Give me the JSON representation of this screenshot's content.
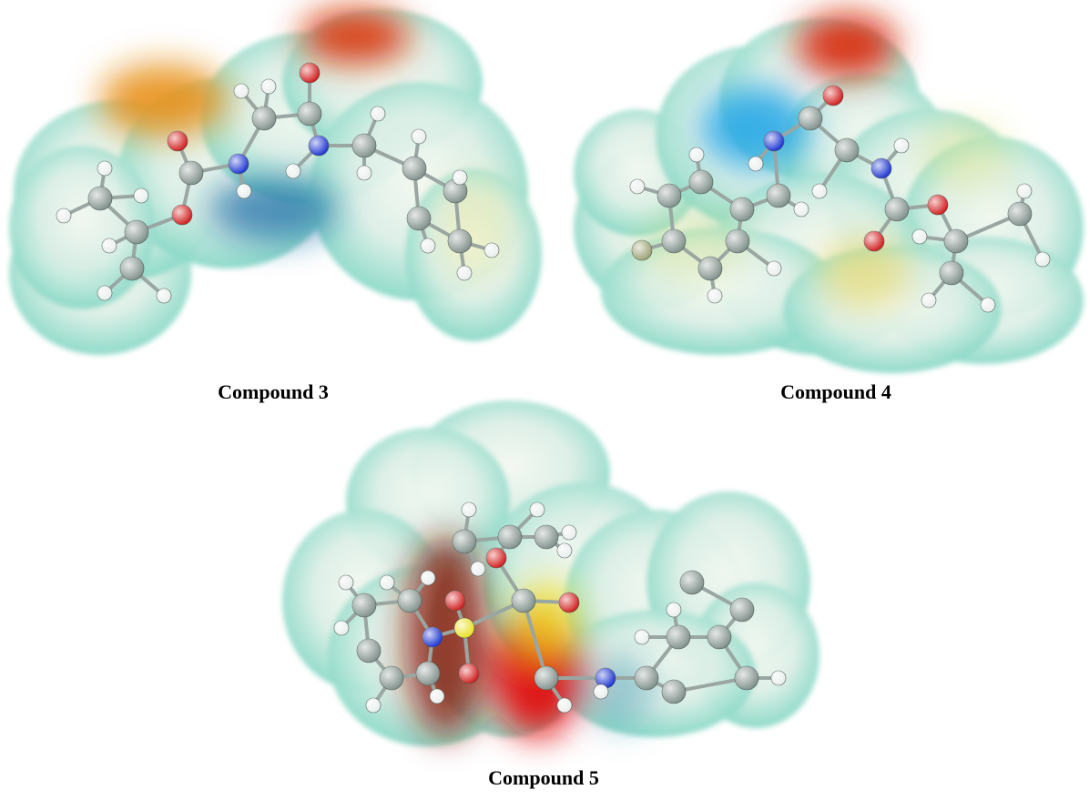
{
  "figure": {
    "panels": [
      {
        "caption": "Compound 3"
      },
      {
        "caption": "Compound 4"
      },
      {
        "caption": "Compound 5"
      }
    ]
  }
}
